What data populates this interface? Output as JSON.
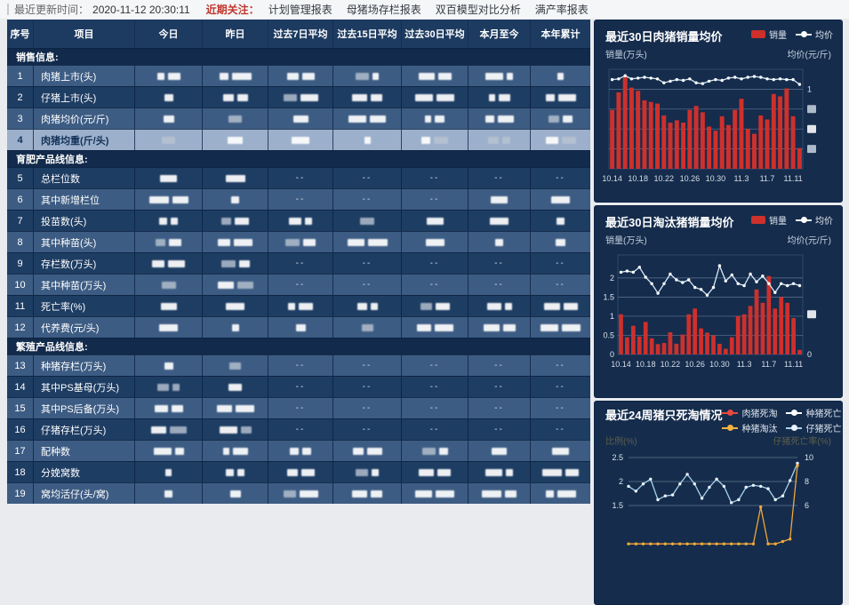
{
  "topbar": {
    "updated_label": "最近更新时间：",
    "updated_time": "2020-11-12 20:30:11",
    "focus_label": "近期关注：",
    "links": [
      "计划管理报表",
      "母猪场存栏报表",
      "双百模型对比分析",
      "满产率报表"
    ]
  },
  "table": {
    "columns": [
      "序号",
      "项目",
      "今日",
      "昨日",
      "过去7日平均",
      "过去15日平均",
      "过去30日平均",
      "本月至今",
      "本年累计"
    ],
    "redacted_marker": "REDACTED",
    "rows": [
      {
        "type": "section",
        "label": "销售信息:"
      },
      {
        "type": "data",
        "no": "1",
        "label": "肉猪上市(头)",
        "shade": "light",
        "cells": [
          null,
          null,
          null,
          null,
          null,
          null,
          null
        ]
      },
      {
        "type": "data",
        "no": "2",
        "label": "仔猪上市(头)",
        "shade": "dark",
        "cells": [
          null,
          null,
          null,
          null,
          null,
          null,
          null
        ]
      },
      {
        "type": "data",
        "no": "3",
        "label": "肉猪均价(元/斤)",
        "shade": "light",
        "cells": [
          null,
          null,
          null,
          null,
          null,
          null,
          null
        ]
      },
      {
        "type": "data",
        "no": "4",
        "label": "肉猪均重(斤/头)",
        "shade": "selected",
        "cells": [
          null,
          null,
          null,
          null,
          null,
          null,
          null
        ]
      },
      {
        "type": "section",
        "label": "育肥产品线信息:"
      },
      {
        "type": "data",
        "no": "5",
        "label": "总栏位数",
        "shade": "dark",
        "cells": [
          null,
          null,
          "--",
          "--",
          "--",
          "--",
          "--"
        ]
      },
      {
        "type": "data",
        "no": "6",
        "label": "其中新增栏位",
        "shade": "light",
        "cells": [
          null,
          null,
          "--",
          "--",
          "--",
          null,
          null
        ]
      },
      {
        "type": "data",
        "no": "7",
        "label": "投苗数(头)",
        "shade": "dark",
        "cells": [
          null,
          null,
          null,
          null,
          null,
          null,
          null
        ]
      },
      {
        "type": "data",
        "no": "8",
        "label": "其中种苗(头)",
        "shade": "light",
        "cells": [
          null,
          null,
          null,
          null,
          null,
          null,
          null
        ]
      },
      {
        "type": "data",
        "no": "9",
        "label": "存栏数(万头)",
        "shade": "dark",
        "cells": [
          null,
          null,
          "--",
          "--",
          "--",
          "--",
          "--"
        ]
      },
      {
        "type": "data",
        "no": "10",
        "label": "其中种苗(万头)",
        "shade": "light",
        "cells": [
          null,
          null,
          "--",
          "--",
          "--",
          "--",
          "--"
        ]
      },
      {
        "type": "data",
        "no": "11",
        "label": "死亡率(%)",
        "shade": "dark",
        "cells": [
          null,
          null,
          null,
          null,
          null,
          null,
          null
        ]
      },
      {
        "type": "data",
        "no": "12",
        "label": "代养费(元/头)",
        "shade": "light",
        "cells": [
          null,
          null,
          null,
          null,
          null,
          null,
          null
        ]
      },
      {
        "type": "section",
        "label": "繁殖产品线信息:"
      },
      {
        "type": "data",
        "no": "13",
        "label": "种猪存栏(万头)",
        "shade": "light",
        "cells": [
          null,
          null,
          "--",
          "--",
          "--",
          "--",
          "--"
        ]
      },
      {
        "type": "data",
        "no": "14",
        "label": "其中PS基母(万头)",
        "shade": "dark",
        "cells": [
          null,
          null,
          "--",
          "--",
          "--",
          "--",
          "--"
        ]
      },
      {
        "type": "data",
        "no": "15",
        "label": "其中PS后备(万头)",
        "shade": "light",
        "cells": [
          null,
          null,
          "--",
          "--",
          "--",
          "--",
          "--"
        ]
      },
      {
        "type": "data",
        "no": "16",
        "label": "仔猪存栏(万头)",
        "shade": "dark",
        "cells": [
          null,
          null,
          "--",
          "--",
          "--",
          "--",
          "--"
        ]
      },
      {
        "type": "data",
        "no": "17",
        "label": "配种数",
        "shade": "light",
        "cells": [
          null,
          null,
          null,
          null,
          null,
          null,
          null
        ]
      },
      {
        "type": "data",
        "no": "18",
        "label": "分娩窝数",
        "shade": "dark",
        "cells": [
          null,
          null,
          null,
          null,
          null,
          null,
          null
        ]
      },
      {
        "type": "data",
        "no": "19",
        "label": "窝均活仔(头/窝)",
        "shade": "light",
        "cells": [
          null,
          null,
          null,
          null,
          null,
          null,
          null
        ]
      }
    ]
  },
  "chart_data": [
    {
      "type": "bar+line",
      "title": "最近30日肉猪销量均价",
      "ylabel_left": "销量(万头)",
      "ylabel_right": "均价(元/斤)",
      "legend": [
        {
          "label": "销量",
          "type": "bar",
          "color": "#ce302c"
        },
        {
          "label": "均价",
          "type": "line",
          "color": "#e9f3fc",
          "dot": "#ffffff"
        }
      ],
      "x_ticks": [
        "10.14",
        "10.18",
        "10.22",
        "10.26",
        "10.30",
        "11.3",
        "11.7",
        "11.11"
      ],
      "bars": [
        0.74,
        0.96,
        1.16,
        1.02,
        0.98,
        0.86,
        0.84,
        0.82,
        0.67,
        0.58,
        0.61,
        0.58,
        0.74,
        0.79,
        0.71,
        0.53,
        0.48,
        0.66,
        0.55,
        0.74,
        0.88,
        0.5,
        0.44,
        0.67,
        0.62,
        0.94,
        0.91,
        1.01,
        0.66,
        0.26
      ],
      "line": [
        1.12,
        1.13,
        1.17,
        1.13,
        1.14,
        1.15,
        1.14,
        1.13,
        1.08,
        1.1,
        1.12,
        1.11,
        1.13,
        1.08,
        1.07,
        1.1,
        1.12,
        1.11,
        1.14,
        1.15,
        1.13,
        1.15,
        1.16,
        1.15,
        1.13,
        1.12,
        1.13,
        1.12,
        1.12,
        1.06
      ],
      "ylim": [
        0,
        1.25
      ],
      "grid": [
        0.25,
        0.5,
        0.75,
        1.0
      ],
      "left_ticks": [],
      "right_ticks": [
        {
          "value": 1.0,
          "label": "1"
        },
        {
          "value": 0.75,
          "label": null
        },
        {
          "value": 0.5,
          "label": null
        },
        {
          "value": 0.25,
          "label": null
        }
      ],
      "note": "bar/line values estimated from pixels; axis values redacted in source"
    },
    {
      "type": "bar+line",
      "title": "最近30日淘汰猪销量均价",
      "ylabel_left": "销量(万头)",
      "ylabel_right": "均价(元/斤)",
      "legend": [
        {
          "label": "销量",
          "type": "bar",
          "color": "#ce302c"
        },
        {
          "label": "均价",
          "type": "line",
          "color": "#e9f3fc",
          "dot": "#ffffff"
        }
      ],
      "x_ticks": [
        "10.14",
        "10.18",
        "10.22",
        "10.26",
        "10.30",
        "11.3",
        "11.7",
        "11.11"
      ],
      "bars": [
        1.05,
        0.45,
        0.75,
        0.47,
        0.85,
        0.42,
        0.27,
        0.3,
        0.58,
        0.28,
        0.52,
        1.05,
        1.2,
        0.68,
        0.57,
        0.5,
        0.28,
        0.15,
        0.45,
        1.0,
        1.05,
        1.27,
        1.7,
        1.35,
        2.05,
        1.2,
        1.5,
        1.35,
        0.95,
        0.12
      ],
      "line": [
        2.15,
        2.18,
        2.15,
        2.28,
        2.02,
        1.85,
        1.6,
        1.85,
        2.1,
        1.95,
        1.88,
        1.95,
        1.75,
        1.7,
        1.55,
        1.75,
        2.32,
        1.92,
        2.08,
        1.85,
        1.8,
        2.1,
        1.9,
        2.05,
        1.85,
        1.62,
        1.85,
        1.8,
        1.85,
        1.8
      ],
      "ylim": [
        0,
        2.6
      ],
      "grid": [
        0.5,
        1.0,
        1.5,
        2.0
      ],
      "left_ticks": [
        {
          "value": 2,
          "label": "2"
        },
        {
          "value": 1.5,
          "label": "1.5"
        },
        {
          "value": 1,
          "label": "1"
        },
        {
          "value": 0.5,
          "label": "0.5"
        },
        {
          "value": 0,
          "label": "0"
        }
      ],
      "right_ticks": [
        {
          "value": 1.05,
          "label": null
        },
        {
          "value": 0,
          "label": "0"
        }
      ],
      "note": "bar/line values estimated from pixels"
    },
    {
      "type": "line",
      "title": "最近24周猪只死淘情况",
      "ylabel_left": "比例(%)",
      "ylabel_right": "仔猪死亡率(%)",
      "legend": [
        {
          "label": "肉猪死淘",
          "type": "line",
          "color": "#e8493e",
          "dot": "#e8493e"
        },
        {
          "label": "种猪死亡",
          "type": "line",
          "color": "#ffffff",
          "dot": "#ffffff"
        },
        {
          "label": "种猪淘汰",
          "type": "line",
          "color": "#f2b23e",
          "dot": "#f2b23e"
        },
        {
          "label": "仔猪死亡",
          "type": "line",
          "color": "#a9d3ee",
          "dot": "#eaf4fc"
        }
      ],
      "left_ticks": [
        {
          "value": 2.5,
          "label": "2.5"
        },
        {
          "value": 2,
          "label": "2"
        },
        {
          "value": 1.5,
          "label": "1.5"
        }
      ],
      "right_ticks": [
        {
          "value": 2.5,
          "label": "10"
        },
        {
          "value": 2,
          "label": "8"
        },
        {
          "value": 1.5,
          "label": "6"
        }
      ],
      "series": [
        {
          "name": "仔猪死亡",
          "color": "#a9d3ee",
          "dot": "#eaf4fc",
          "values": [
            1.9,
            1.8,
            1.95,
            2.05,
            1.62,
            1.7,
            1.72,
            1.95,
            2.15,
            1.95,
            1.65,
            1.88,
            2.05,
            1.9,
            1.56,
            1.62,
            1.88,
            1.92,
            1.9,
            1.85,
            1.62,
            1.7,
            2.02,
            2.38
          ]
        },
        {
          "name": "种猪淘汰",
          "color": "#f0a83a",
          "dot": "#f0a83a",
          "values": [
            0.7,
            0.7,
            0.7,
            0.7,
            0.7,
            0.7,
            0.7,
            0.7,
            0.7,
            0.7,
            0.7,
            0.7,
            0.7,
            0.7,
            0.7,
            0.7,
            0.7,
            0.7,
            1.47,
            0.7,
            0.7,
            0.75,
            0.8,
            2.33
          ]
        },
        {
          "name": "肉猪死淘",
          "color": "#e8493e",
          "dot": "#e8493e",
          "values": []
        },
        {
          "name": "种猪死亡",
          "color": "#ffffff",
          "dot": "#ffffff",
          "values": []
        }
      ],
      "note": "only region above 1.5 visible in screenshot; lower values estimated/clipped"
    }
  ],
  "colors": {
    "bar_red": "#ce302c",
    "row_light": "#3d5c83",
    "row_dark": "#1e3d63",
    "row_selected": "#9cb0cb",
    "panel_bg": "#152c4c",
    "header_bg": "#1d3b60",
    "focus_red": "#c2372e"
  }
}
